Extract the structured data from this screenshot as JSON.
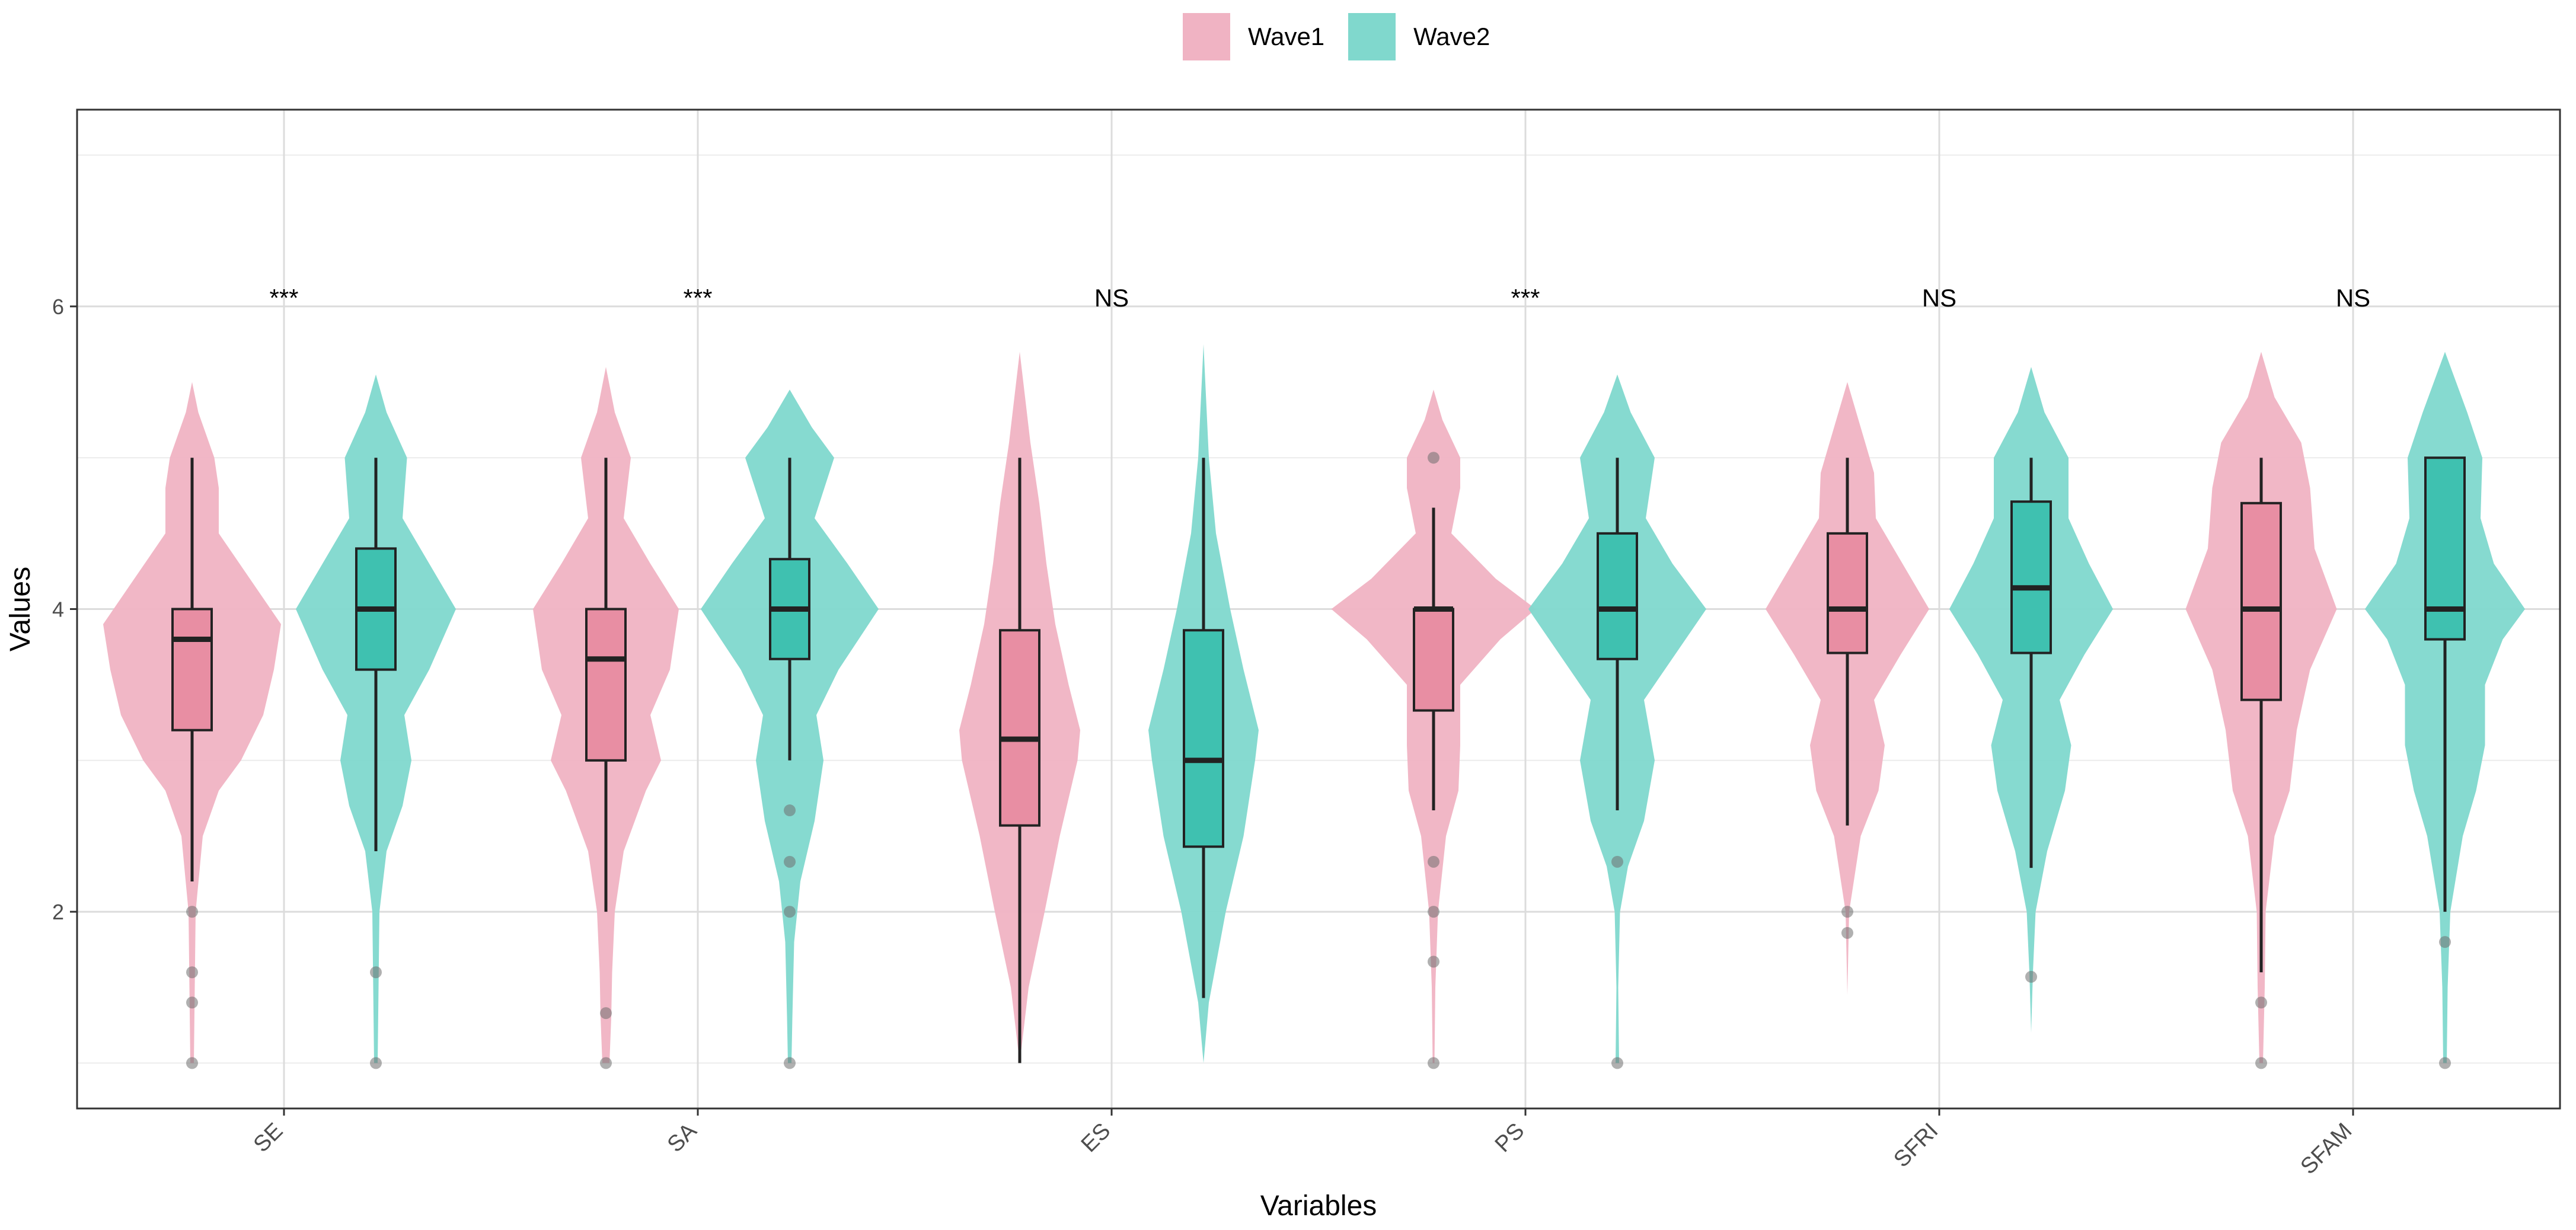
{
  "legend": {
    "items": [
      {
        "label": "Wave1",
        "color": "#f0b3c3"
      },
      {
        "label": "Wave2",
        "color": "#80d8cd"
      }
    ]
  },
  "chart_data": {
    "type": "violin",
    "xlabel": "Variables",
    "ylabel": "Values",
    "ylim": [
      0.7,
      7.3
    ],
    "yticks": [
      2,
      4,
      6
    ],
    "grid": true,
    "legend_position": "top",
    "categories": [
      "SE",
      "SA",
      "ES",
      "PS",
      "SFRI",
      "SFAM"
    ],
    "significance": [
      "***",
      "***",
      "NS",
      "***",
      "NS",
      "NS"
    ],
    "colors": {
      "Wave1_fill": "#f0b3c3",
      "Wave1_box": "#e88ea3",
      "Wave2_fill": "#80d8cd",
      "Wave2_box": "#3fc1b0"
    },
    "series": [
      {
        "name": "Wave1",
        "boxes": [
          {
            "min": 2.2,
            "q1": 3.2,
            "median": 3.8,
            "q3": 4.0,
            "max": 5.0,
            "outliers": [
              2.0,
              1.6,
              1.4,
              1.0
            ]
          },
          {
            "min": 2.0,
            "q1": 3.0,
            "median": 3.67,
            "q3": 4.0,
            "max": 5.0,
            "outliers": [
              1.33,
              1.0
            ]
          },
          {
            "min": 1.0,
            "q1": 2.57,
            "median": 3.14,
            "q3": 3.86,
            "max": 5.0,
            "outliers": []
          },
          {
            "min": 2.67,
            "q1": 3.33,
            "median": 4.0,
            "q3": 4.0,
            "max": 4.67,
            "outliers": [
              5.0,
              2.33,
              2.0,
              1.67,
              1.0
            ]
          },
          {
            "min": 2.57,
            "q1": 3.71,
            "median": 4.0,
            "q3": 4.5,
            "max": 5.0,
            "outliers": [
              2.0,
              1.86
            ]
          },
          {
            "min": 1.6,
            "q1": 3.4,
            "median": 4.0,
            "q3": 4.7,
            "max": 5.0,
            "outliers": [
              1.4,
              1.0
            ]
          }
        ],
        "violins": [
          {
            "lo": 1.0,
            "hi": 5.5,
            "profile": [
              [
                1.0,
                0.02
              ],
              [
                1.5,
                0.03
              ],
              [
                2.0,
                0.04
              ],
              [
                2.5,
                0.12
              ],
              [
                2.8,
                0.3
              ],
              [
                3.0,
                0.55
              ],
              [
                3.3,
                0.8
              ],
              [
                3.6,
                0.92
              ],
              [
                3.9,
                1.0
              ],
              [
                4.2,
                0.65
              ],
              [
                4.5,
                0.3
              ],
              [
                4.8,
                0.3
              ],
              [
                5.0,
                0.25
              ],
              [
                5.3,
                0.07
              ],
              [
                5.5,
                0.0
              ]
            ]
          },
          {
            "lo": 1.0,
            "hi": 5.6,
            "profile": [
              [
                1.0,
                0.04
              ],
              [
                1.3,
                0.06
              ],
              [
                1.6,
                0.07
              ],
              [
                2.0,
                0.1
              ],
              [
                2.4,
                0.2
              ],
              [
                2.8,
                0.45
              ],
              [
                3.0,
                0.62
              ],
              [
                3.3,
                0.5
              ],
              [
                3.6,
                0.72
              ],
              [
                4.0,
                0.82
              ],
              [
                4.3,
                0.5
              ],
              [
                4.6,
                0.2
              ],
              [
                5.0,
                0.28
              ],
              [
                5.3,
                0.1
              ],
              [
                5.6,
                0.0
              ]
            ]
          },
          {
            "lo": 1.0,
            "hi": 5.7,
            "profile": [
              [
                1.0,
                0.0
              ],
              [
                1.5,
                0.1
              ],
              [
                2.0,
                0.28
              ],
              [
                2.5,
                0.45
              ],
              [
                3.0,
                0.65
              ],
              [
                3.2,
                0.68
              ],
              [
                3.5,
                0.55
              ],
              [
                3.9,
                0.4
              ],
              [
                4.3,
                0.3
              ],
              [
                4.7,
                0.22
              ],
              [
                5.1,
                0.12
              ],
              [
                5.5,
                0.04
              ],
              [
                5.7,
                0.0
              ]
            ]
          },
          {
            "lo": 1.0,
            "hi": 5.45,
            "profile": [
              [
                1.0,
                0.01
              ],
              [
                1.5,
                0.02
              ],
              [
                2.0,
                0.05
              ],
              [
                2.5,
                0.14
              ],
              [
                2.8,
                0.28
              ],
              [
                3.1,
                0.3
              ],
              [
                3.5,
                0.3
              ],
              [
                3.8,
                0.75
              ],
              [
                4.0,
                1.15
              ],
              [
                4.2,
                0.7
              ],
              [
                4.5,
                0.2
              ],
              [
                4.8,
                0.3
              ],
              [
                5.0,
                0.3
              ],
              [
                5.25,
                0.1
              ],
              [
                5.45,
                0.0
              ]
            ]
          },
          {
            "lo": 1.45,
            "hi": 5.5,
            "profile": [
              [
                1.45,
                0.0
              ],
              [
                2.0,
                0.02
              ],
              [
                2.5,
                0.15
              ],
              [
                2.8,
                0.35
              ],
              [
                3.1,
                0.42
              ],
              [
                3.4,
                0.3
              ],
              [
                3.7,
                0.6
              ],
              [
                4.0,
                0.92
              ],
              [
                4.3,
                0.62
              ],
              [
                4.6,
                0.32
              ],
              [
                4.9,
                0.3
              ],
              [
                5.2,
                0.15
              ],
              [
                5.5,
                0.0
              ]
            ]
          },
          {
            "lo": 1.0,
            "hi": 5.7,
            "profile": [
              [
                1.0,
                0.02
              ],
              [
                1.5,
                0.04
              ],
              [
                2.0,
                0.05
              ],
              [
                2.5,
                0.15
              ],
              [
                2.8,
                0.32
              ],
              [
                3.2,
                0.4
              ],
              [
                3.6,
                0.55
              ],
              [
                4.0,
                0.85
              ],
              [
                4.4,
                0.6
              ],
              [
                4.8,
                0.55
              ],
              [
                5.1,
                0.45
              ],
              [
                5.4,
                0.15
              ],
              [
                5.7,
                0.0
              ]
            ]
          }
        ]
      },
      {
        "name": "Wave2",
        "boxes": [
          {
            "min": 2.4,
            "q1": 3.6,
            "median": 4.0,
            "q3": 4.4,
            "max": 5.0,
            "outliers": [
              1.6,
              1.0
            ]
          },
          {
            "min": 3.0,
            "q1": 3.67,
            "median": 4.0,
            "q3": 4.33,
            "max": 5.0,
            "outliers": [
              2.67,
              2.33,
              2.0,
              1.0
            ]
          },
          {
            "min": 1.43,
            "q1": 2.43,
            "median": 3.0,
            "q3": 3.86,
            "max": 5.0,
            "outliers": []
          },
          {
            "min": 2.67,
            "q1": 3.67,
            "median": 4.0,
            "q3": 4.5,
            "max": 5.0,
            "outliers": [
              2.33,
              1.0
            ]
          },
          {
            "min": 2.29,
            "q1": 3.71,
            "median": 4.14,
            "q3": 4.71,
            "max": 5.0,
            "outliers": [
              1.57
            ]
          },
          {
            "min": 2.0,
            "q1": 3.8,
            "median": 4.0,
            "q3": 5.0,
            "max": 5.0,
            "outliers": [
              1.8,
              1.0
            ]
          }
        ],
        "violins": [
          {
            "lo": 1.0,
            "hi": 5.55,
            "profile": [
              [
                1.0,
                0.02
              ],
              [
                1.5,
                0.03
              ],
              [
                2.0,
                0.04
              ],
              [
                2.4,
                0.12
              ],
              [
                2.7,
                0.3
              ],
              [
                3.0,
                0.4
              ],
              [
                3.3,
                0.32
              ],
              [
                3.6,
                0.6
              ],
              [
                4.0,
                0.9
              ],
              [
                4.3,
                0.6
              ],
              [
                4.6,
                0.3
              ],
              [
                5.0,
                0.35
              ],
              [
                5.3,
                0.12
              ],
              [
                5.55,
                0.0
              ]
            ]
          },
          {
            "lo": 1.0,
            "hi": 5.45,
            "profile": [
              [
                1.0,
                0.02
              ],
              [
                1.3,
                0.03
              ],
              [
                1.8,
                0.05
              ],
              [
                2.2,
                0.12
              ],
              [
                2.6,
                0.28
              ],
              [
                3.0,
                0.38
              ],
              [
                3.3,
                0.3
              ],
              [
                3.6,
                0.55
              ],
              [
                4.0,
                1.0
              ],
              [
                4.3,
                0.65
              ],
              [
                4.6,
                0.28
              ],
              [
                5.0,
                0.5
              ],
              [
                5.2,
                0.25
              ],
              [
                5.45,
                0.0
              ]
            ]
          },
          {
            "lo": 1.0,
            "hi": 5.75,
            "profile": [
              [
                1.0,
                0.0
              ],
              [
                1.4,
                0.06
              ],
              [
                2.0,
                0.25
              ],
              [
                2.5,
                0.45
              ],
              [
                3.0,
                0.58
              ],
              [
                3.2,
                0.62
              ],
              [
                3.6,
                0.45
              ],
              [
                4.0,
                0.3
              ],
              [
                4.5,
                0.14
              ],
              [
                5.0,
                0.06
              ],
              [
                5.5,
                0.02
              ],
              [
                5.75,
                0.0
              ]
            ]
          },
          {
            "lo": 1.0,
            "hi": 5.55,
            "profile": [
              [
                1.0,
                0.02
              ],
              [
                1.5,
                0.01
              ],
              [
                2.0,
                0.03
              ],
              [
                2.3,
                0.12
              ],
              [
                2.6,
                0.3
              ],
              [
                3.0,
                0.42
              ],
              [
                3.4,
                0.3
              ],
              [
                3.7,
                0.65
              ],
              [
                4.0,
                1.0
              ],
              [
                4.3,
                0.62
              ],
              [
                4.6,
                0.32
              ],
              [
                5.0,
                0.42
              ],
              [
                5.3,
                0.15
              ],
              [
                5.55,
                0.0
              ]
            ]
          },
          {
            "lo": 1.2,
            "hi": 5.6,
            "profile": [
              [
                1.2,
                0.0
              ],
              [
                1.6,
                0.02
              ],
              [
                2.0,
                0.05
              ],
              [
                2.4,
                0.18
              ],
              [
                2.8,
                0.38
              ],
              [
                3.1,
                0.45
              ],
              [
                3.4,
                0.32
              ],
              [
                3.7,
                0.6
              ],
              [
                4.0,
                0.92
              ],
              [
                4.3,
                0.65
              ],
              [
                4.6,
                0.42
              ],
              [
                5.0,
                0.42
              ],
              [
                5.3,
                0.15
              ],
              [
                5.6,
                0.0
              ]
            ]
          },
          {
            "lo": 1.0,
            "hi": 5.7,
            "profile": [
              [
                1.0,
                0.02
              ],
              [
                1.5,
                0.03
              ],
              [
                2.0,
                0.06
              ],
              [
                2.5,
                0.2
              ],
              [
                2.8,
                0.35
              ],
              [
                3.1,
                0.45
              ],
              [
                3.5,
                0.45
              ],
              [
                3.8,
                0.65
              ],
              [
                4.0,
                0.9
              ],
              [
                4.3,
                0.55
              ],
              [
                4.6,
                0.4
              ],
              [
                5.0,
                0.42
              ],
              [
                5.3,
                0.25
              ],
              [
                5.7,
                0.0
              ]
            ]
          }
        ]
      }
    ]
  }
}
